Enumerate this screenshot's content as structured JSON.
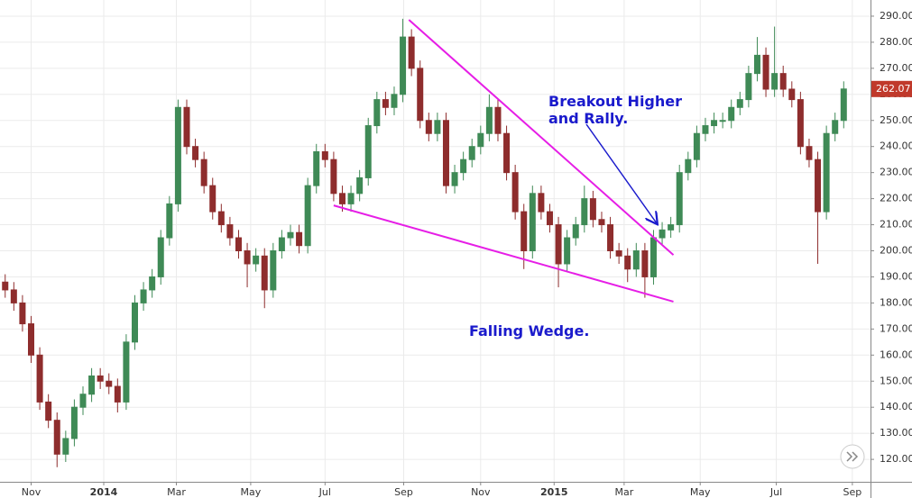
{
  "chart_data": {
    "type": "candlestick",
    "x": [
      -3,
      -2,
      -1,
      0,
      1,
      2,
      3,
      4,
      5,
      6,
      7,
      8,
      9,
      10,
      11,
      12,
      13,
      14,
      15,
      16,
      17,
      18,
      19,
      20,
      21,
      22,
      23,
      24,
      25,
      26,
      27,
      28,
      29,
      30,
      31,
      32,
      33,
      34,
      35,
      36,
      37,
      38,
      39,
      40,
      41,
      42,
      43,
      44,
      45,
      46,
      47,
      48,
      49,
      50,
      51,
      52,
      53,
      54,
      55,
      56,
      57,
      58,
      59,
      60,
      61,
      62,
      63,
      64,
      65,
      66,
      67,
      68,
      69,
      70,
      71,
      72,
      73,
      74,
      75,
      76,
      77,
      78,
      79,
      80,
      81,
      82,
      83,
      84,
      85,
      86,
      87,
      88,
      89,
      90,
      91,
      92,
      93,
      94
    ],
    "open": [
      188,
      185,
      180,
      172,
      160,
      142,
      135,
      122,
      128,
      140,
      145,
      152,
      150,
      148,
      142,
      165,
      180,
      185,
      190,
      205,
      218,
      255,
      240,
      235,
      225,
      215,
      210,
      205,
      200,
      195,
      198,
      185,
      200,
      205,
      207,
      202,
      225,
      238,
      235,
      222,
      218,
      222,
      228,
      248,
      258,
      255,
      260,
      282,
      270,
      250,
      245,
      250,
      225,
      230,
      235,
      240,
      245,
      255,
      245,
      230,
      215,
      200,
      222,
      215,
      210,
      195,
      205,
      210,
      220,
      212,
      210,
      200,
      198,
      193,
      200,
      190,
      205,
      208,
      210,
      230,
      235,
      245,
      248,
      250,
      250,
      255,
      258,
      268,
      275,
      262,
      268,
      262,
      258,
      240,
      235,
      215,
      245,
      250
    ],
    "high": [
      191,
      188,
      183,
      175,
      163,
      145,
      138,
      131,
      143,
      148,
      155,
      155,
      153,
      151,
      168,
      183,
      188,
      193,
      208,
      221,
      258,
      258,
      243,
      238,
      228,
      218,
      213,
      208,
      203,
      201,
      201,
      203,
      208,
      210,
      210,
      228,
      241,
      241,
      238,
      225,
      225,
      231,
      251,
      261,
      261,
      263,
      289,
      285,
      273,
      253,
      253,
      253,
      233,
      238,
      243,
      248,
      260,
      258,
      248,
      233,
      218,
      225,
      225,
      218,
      213,
      208,
      213,
      225,
      223,
      215,
      213,
      203,
      201,
      203,
      203,
      208,
      211,
      213,
      233,
      238,
      248,
      251,
      253,
      253,
      258,
      261,
      271,
      282,
      278,
      286,
      271,
      265,
      261,
      243,
      238,
      248,
      253,
      265
    ],
    "low": [
      182,
      177,
      169,
      157,
      139,
      132,
      117,
      119,
      125,
      137,
      142,
      147,
      145,
      138,
      139,
      162,
      177,
      182,
      187,
      202,
      215,
      237,
      232,
      222,
      212,
      207,
      202,
      197,
      186,
      192,
      178,
      182,
      197,
      202,
      199,
      199,
      222,
      232,
      219,
      215,
      215,
      219,
      225,
      245,
      252,
      252,
      257,
      267,
      247,
      242,
      242,
      222,
      222,
      227,
      232,
      237,
      242,
      242,
      227,
      212,
      193,
      197,
      212,
      207,
      186,
      192,
      202,
      207,
      209,
      207,
      197,
      195,
      188,
      190,
      182,
      187,
      202,
      205,
      207,
      227,
      232,
      242,
      245,
      247,
      247,
      252,
      255,
      265,
      259,
      259,
      259,
      255,
      237,
      232,
      195,
      212,
      242,
      247
    ],
    "close": [
      185,
      180,
      172,
      160,
      142,
      135,
      122,
      128,
      140,
      145,
      152,
      150,
      148,
      142,
      165,
      180,
      185,
      190,
      205,
      218,
      255,
      240,
      235,
      225,
      215,
      210,
      205,
      200,
      195,
      198,
      185,
      200,
      205,
      207,
      202,
      225,
      238,
      235,
      222,
      218,
      222,
      228,
      248,
      258,
      255,
      260,
      282,
      270,
      250,
      245,
      250,
      225,
      230,
      235,
      240,
      245,
      255,
      245,
      230,
      215,
      200,
      222,
      215,
      210,
      195,
      205,
      210,
      220,
      212,
      210,
      200,
      198,
      193,
      200,
      190,
      205,
      208,
      210,
      230,
      235,
      245,
      248,
      250,
      250,
      255,
      258,
      268,
      275,
      262,
      268,
      262,
      258,
      240,
      235,
      215,
      245,
      250,
      262.07
    ],
    "up_color": "#3f8a56",
    "down_color": "#8e2d2d",
    "line_color": "#e61ee6",
    "xlim": [
      -3.6,
      97.1
    ],
    "ylim": [
      111.4,
      296.2
    ],
    "xticks": [
      {
        "value": 0,
        "label": "Nov"
      },
      {
        "value": 8.4,
        "label": "2014"
      },
      {
        "value": 16.8,
        "label": "Mar"
      },
      {
        "value": 25.4,
        "label": "May"
      },
      {
        "value": 34,
        "label": "Jul"
      },
      {
        "value": 43.1,
        "label": "Sep"
      },
      {
        "value": 52,
        "label": "Nov"
      },
      {
        "value": 60.5,
        "label": "2015"
      },
      {
        "value": 68.6,
        "label": "Mar"
      },
      {
        "value": 77.4,
        "label": "May"
      },
      {
        "value": 86.2,
        "label": "Jul"
      },
      {
        "value": 95,
        "label": "Sep"
      }
    ],
    "yticks": [
      {
        "value": 120,
        "label": "120.00"
      },
      {
        "value": 130,
        "label": "130.00"
      },
      {
        "value": 140,
        "label": "140.00"
      },
      {
        "value": 150,
        "label": "150.00"
      },
      {
        "value": 160,
        "label": "160.00"
      },
      {
        "value": 170,
        "label": "170.00"
      },
      {
        "value": 180,
        "label": "180.00"
      },
      {
        "value": 190,
        "label": "190.00"
      },
      {
        "value": 200,
        "label": "200.00"
      },
      {
        "value": 210,
        "label": "210.00"
      },
      {
        "value": 220,
        "label": "220.00"
      },
      {
        "value": 230,
        "label": "230.00"
      },
      {
        "value": 240,
        "label": "240.00"
      },
      {
        "value": 250,
        "label": "250.00"
      },
      {
        "value": 260,
        "label": "260.00"
      },
      {
        "value": 270,
        "label": "270.00"
      },
      {
        "value": 280,
        "label": "280.00"
      },
      {
        "value": 290,
        "label": "290.00"
      }
    ],
    "grid": true,
    "trendlines": [
      {
        "x": [
          43.7,
          74.3
        ],
        "y": [
          288.6,
          198.4
        ]
      },
      {
        "x": [
          35,
          74.3
        ],
        "y": [
          217.4,
          180.5
        ]
      }
    ],
    "annotations": [
      [
        "Breakout Higher",
        "and Rally."
      ],
      [
        "Falling Wedge."
      ]
    ]
  }
}
